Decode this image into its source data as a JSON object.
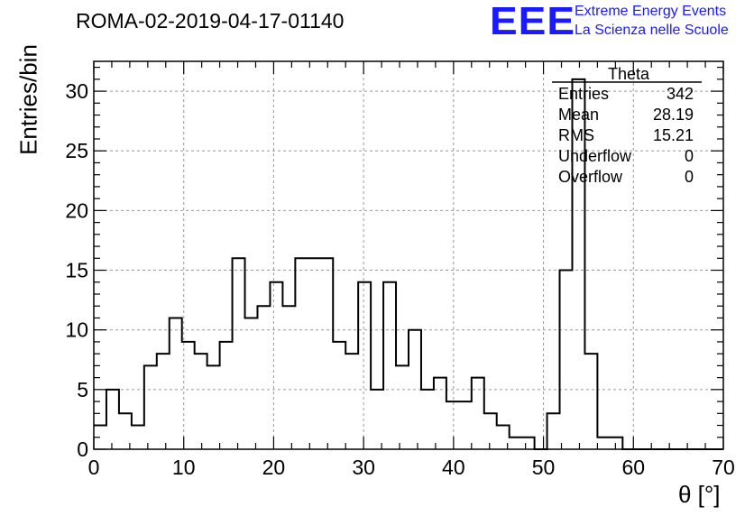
{
  "header": {
    "run_title": "ROMA-02-2019-04-17-01140",
    "logo_text": "EEE",
    "logo_line1": "Extreme Energy Events",
    "logo_line2": "La Scienza nelle Scuole",
    "logo_color": "#1a1aff"
  },
  "stats_box": {
    "title": "Theta",
    "rows": [
      {
        "label": "Entries",
        "value": "342"
      },
      {
        "label": "Mean",
        "value": "28.19"
      },
      {
        "label": "RMS",
        "value": "15.21"
      },
      {
        "label": "Underflow",
        "value": "0"
      },
      {
        "label": "Overflow",
        "value": "0"
      }
    ]
  },
  "chart_data": {
    "type": "bar",
    "style": "step-histogram",
    "xlabel": "θ [°]",
    "ylabel": "Entries/bin",
    "xlim": [
      0,
      70
    ],
    "ylim": [
      0,
      32.5
    ],
    "bin_width": 1.4,
    "grid": true,
    "x_ticks": [
      0,
      10,
      20,
      30,
      40,
      50,
      60,
      70
    ],
    "y_ticks": [
      0,
      5,
      10,
      15,
      20,
      25,
      30
    ],
    "values": [
      2,
      5,
      3,
      2,
      7,
      8,
      11,
      9,
      8,
      7,
      9,
      16,
      11,
      12,
      14,
      12,
      16,
      16,
      16,
      9,
      8,
      14,
      5,
      14,
      7,
      10,
      5,
      6,
      4,
      4,
      6,
      3,
      2,
      1,
      1,
      0,
      3,
      15,
      31,
      8,
      1,
      1,
      0,
      0,
      0,
      0,
      0,
      0,
      0,
      0
    ],
    "line_color": "#000000"
  }
}
